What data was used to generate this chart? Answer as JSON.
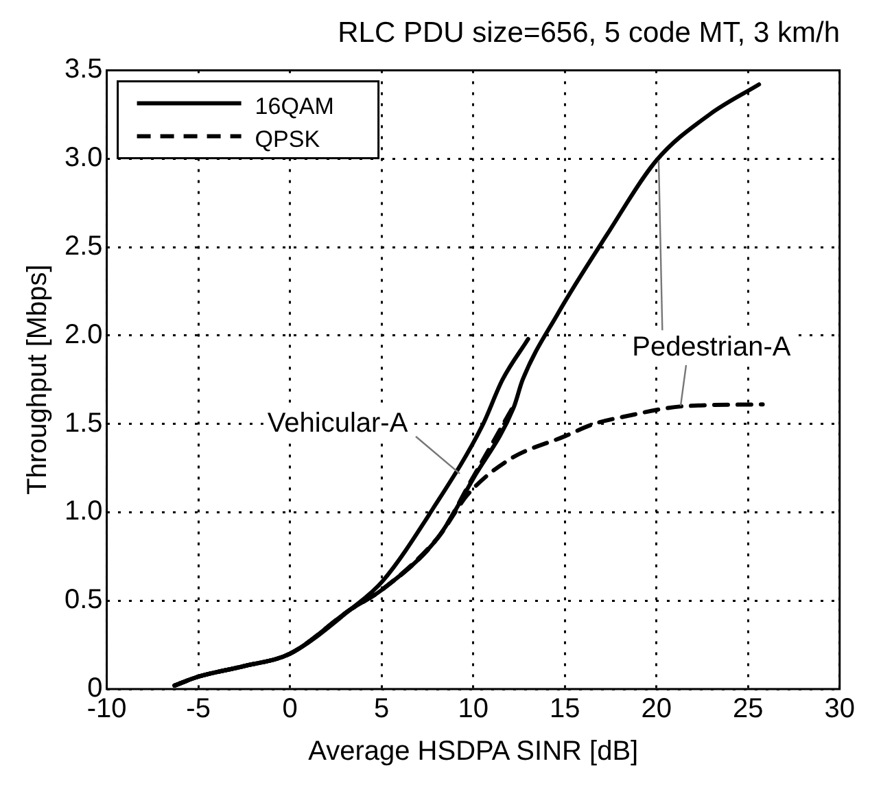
{
  "chart_data": {
    "type": "line",
    "title": "RLC PDU size=656, 5 code MT, 3 km/h",
    "xlabel": "Average HSDPA SINR [dB]",
    "ylabel": "Throughput [Mbps]",
    "xlim": [
      -10,
      30
    ],
    "xticks": [
      -10,
      -5,
      0,
      5,
      10,
      15,
      20,
      25,
      30
    ],
    "ylim": [
      0,
      3.5
    ],
    "yticks": [
      0,
      0.5,
      {
        "value": 1,
        "label": "1.0"
      },
      1.5,
      {
        "value": 2,
        "label": "2.0"
      },
      2.5,
      {
        "value": 3,
        "label": "3.0"
      },
      3.5
    ],
    "grid": true,
    "legend": "top left",
    "marker": "none",
    "annotations": [
      {
        "text": "Pedestrian-A",
        "x": 20.1,
        "y": 2.99
      },
      {
        "text": "Vehicular-A",
        "x": 9.3,
        "y": 1.22
      }
    ],
    "series": [
      {
        "name": "16QAM",
        "color": "#000000",
        "line_style": "solid",
        "x": [
          -6.3,
          -5,
          -2.5,
          0,
          3.3,
          5,
          8.1,
          10,
          12.2,
          12.7,
          14.6,
          17.3,
          20,
          22.9,
          25.6
        ],
        "values": [
          0.02,
          0.07,
          0.13,
          0.2,
          0.45,
          0.56,
          0.86,
          1.19,
          1.59,
          1.75,
          2.12,
          2.57,
          2.99,
          3.25,
          3.42
        ]
      },
      {
        "color": "#000000",
        "line_style": "solid",
        "x": [
          -6.3,
          -5,
          -2.5,
          0,
          3.3,
          5.05,
          7.8,
          10.5,
          11.6,
          13
        ],
        "values": [
          0.02,
          0.07,
          0.13,
          0.2,
          0.45,
          0.61,
          1.02,
          1.49,
          1.75,
          1.98
        ]
      },
      {
        "name": "QPSK",
        "color": "#000000",
        "line_style": "dashed",
        "x": [
          -6.3,
          -5,
          -2.5,
          0,
          3.3,
          5,
          8.1,
          9.7,
          12,
          15,
          16.6,
          18.2,
          21.5,
          25.8
        ],
        "values": [
          0.02,
          0.07,
          0.13,
          0.2,
          0.45,
          0.56,
          0.86,
          1.1,
          1.3,
          1.43,
          1.5,
          1.54,
          1.6,
          1.61
        ]
      },
      {
        "color": "#000000",
        "line_style": "dashed",
        "x": [
          -6.3,
          -5,
          -2.5,
          0,
          3.3,
          5,
          8.1,
          10,
          12.3
        ],
        "values": [
          0.02,
          0.07,
          0.13,
          0.2,
          0.45,
          0.56,
          0.86,
          1.2,
          1.62
        ]
      }
    ]
  }
}
